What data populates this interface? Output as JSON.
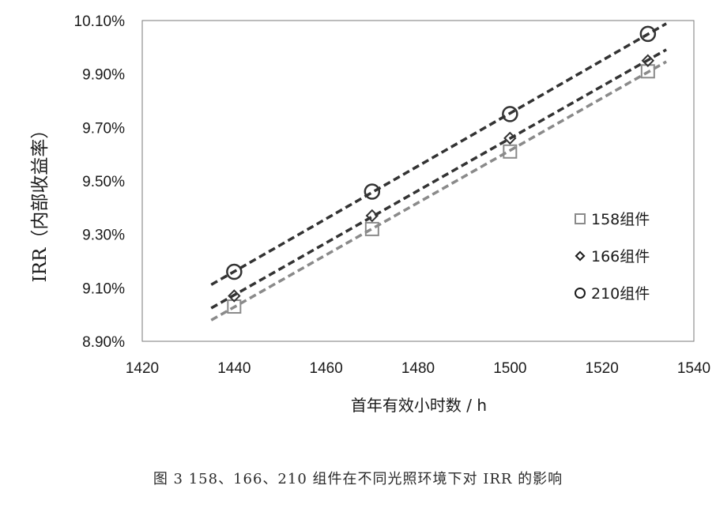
{
  "chart_data": {
    "type": "scatter",
    "xlabel": "首年有效小时数 / h",
    "ylabel": "IRR（内部收益率）",
    "xlim": [
      1420,
      1540
    ],
    "ylim": [
      8.9,
      10.1
    ],
    "x_ticks": [
      "1420",
      "1440",
      "1460",
      "1480",
      "1500",
      "1520",
      "1540"
    ],
    "y_ticks": [
      "8.90%",
      "9.10%",
      "9.30%",
      "9.50%",
      "9.70%",
      "9.90%",
      "10.10%"
    ],
    "x": [
      1440,
      1470,
      1500,
      1530
    ],
    "series": [
      {
        "name": "158组件",
        "marker": "square",
        "color": "#8a8a8a",
        "values": [
          9.03,
          9.32,
          9.61,
          9.91
        ]
      },
      {
        "name": "166组件",
        "marker": "diamond",
        "color": "#333333",
        "values": [
          9.07,
          9.37,
          9.66,
          9.95
        ]
      },
      {
        "name": "210组件",
        "marker": "circle",
        "color": "#333333",
        "values": [
          9.16,
          9.46,
          9.75,
          10.05
        ]
      }
    ],
    "trendline": "linear, dashed",
    "grid": false,
    "legend_position": "right"
  },
  "caption": "图 3 158、166、210 组件在不同光照环境下对 IRR 的影响"
}
